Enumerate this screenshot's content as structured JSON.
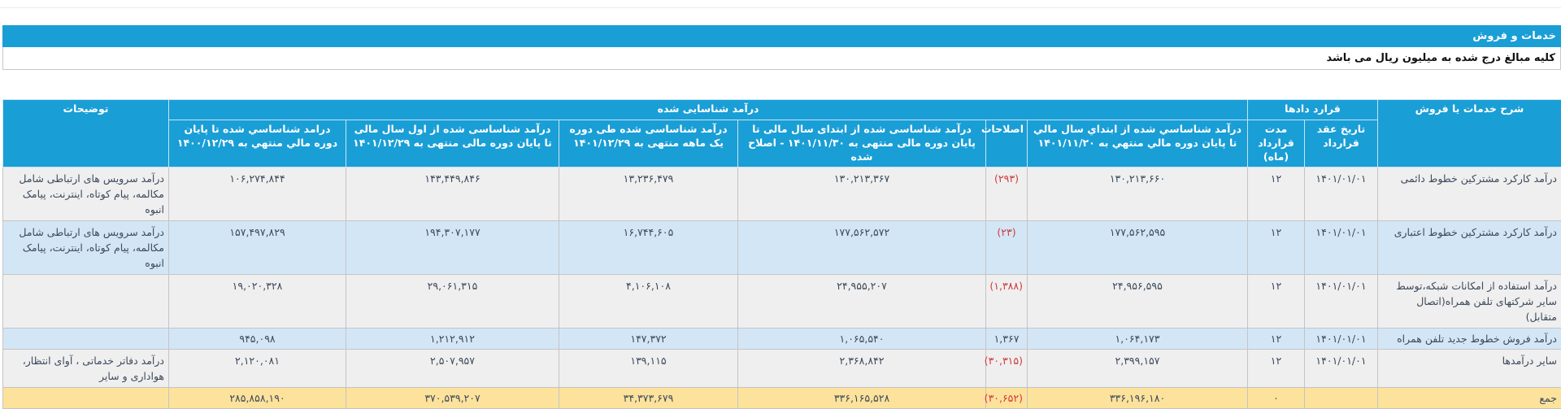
{
  "section": {
    "title": "خدمات و فروش",
    "note": "کلیه مبالغ درج شده به میلیون ریال می باشد"
  },
  "colors": {
    "header": "#1a9ed6",
    "row_odd": "#efefef",
    "row_even": "#d3e6f6",
    "total_row": "#fde29c",
    "negative": "#d23a3a"
  },
  "table": {
    "headers": {
      "description": "شرح خدمات یا فروش",
      "contracts": "قرارد دادها",
      "recognized": "درآمد شناسایی شده",
      "notes": "توضیحات",
      "contract_date": "تاریخ عقد قرارداد",
      "duration": "مدت قرارداد (ماه)",
      "ytd_1401_11_20": "درآمد شناساسي شده از ابتداي سال مالي تا پايان دوره مالي منتهي به ۱۴۰۱/۱۱/۲۰",
      "adjustments": "اصلاحات",
      "ytd_adjusted": "درآمد شناساسی شده از ابتدای سال مالی تا پایان دوره مالی منتهی به ۱۴۰۱/۱۱/۳۰ - اصلاح شده",
      "one_month": "درآمد شناساسی شده طی دوره یک ماهه منتهی به ۱۴۰۱/۱۲/۲۹",
      "ytd_1401_12_29": "درآمد شناساسی شده از اول سال مالی تا پایان دوره مالی منتهی به ۱۴۰۱/۱۲/۲۹",
      "to_1400_12_29": "درامد شناساسي شده تا پايان دوره مالي منتهي به ۱۴۰۰/۱۲/۲۹"
    },
    "rows": [
      {
        "desc": "درآمد کارکرد مشترکین خطوط دائمی",
        "date": "۱۴۰۱/۰۱/۰۱",
        "duration": "۱۲",
        "c1": "۱۳۰,۲۱۳,۶۶۰",
        "adj": "(۲۹۳)",
        "c2": "۱۳۰,۲۱۳,۳۶۷",
        "c3": "۱۳,۲۳۶,۴۷۹",
        "c4": "۱۴۳,۴۴۹,۸۴۶",
        "c5": "۱۰۶,۲۷۴,۸۴۴",
        "notes": "درآمد سرویس های ارتباطی شامل مکالمه، پیام کوتاه، اینترنت، پیامک انبوه"
      },
      {
        "desc": "درآمد کارکرد مشترکین خطوط اعتباری",
        "date": "۱۴۰۱/۰۱/۰۱",
        "duration": "۱۲",
        "c1": "۱۷۷,۵۶۲,۵۹۵",
        "adj": "(۲۳)",
        "c2": "۱۷۷,۵۶۲,۵۷۲",
        "c3": "۱۶,۷۴۴,۶۰۵",
        "c4": "۱۹۴,۳۰۷,۱۷۷",
        "c5": "۱۵۷,۴۹۷,۸۲۹",
        "notes": "درآمد سرویس های ارتباطی شامل مکالمه، پیام کوتاه، اینترنت، پیامک انبوه"
      },
      {
        "desc": "درآمد استفاده از امکانات شبکه،توسط سایر شرکتهای تلفن همراه(اتصال متقابل)",
        "date": "۱۴۰۱/۰۱/۰۱",
        "duration": "۱۲",
        "c1": "۲۴,۹۵۶,۵۹۵",
        "adj": "(۱,۳۸۸)",
        "c2": "۲۴,۹۵۵,۲۰۷",
        "c3": "۴,۱۰۶,۱۰۸",
        "c4": "۲۹,۰۶۱,۳۱۵",
        "c5": "۱۹,۰۲۰,۳۲۸",
        "notes": ""
      },
      {
        "desc": "درآمد فروش خطوط جدید تلفن همراه",
        "date": "۱۴۰۱/۰۱/۰۱",
        "duration": "۱۲",
        "c1": "۱,۰۶۴,۱۷۳",
        "adj": "۱,۳۶۷",
        "c2": "۱,۰۶۵,۵۴۰",
        "c3": "۱۴۷,۳۷۲",
        "c4": "۱,۲۱۲,۹۱۲",
        "c5": "۹۴۵,۰۹۸",
        "notes": ""
      },
      {
        "desc": "سایر درآمدها",
        "date": "۱۴۰۱/۰۱/۰۱",
        "duration": "۱۲",
        "c1": "۲,۳۹۹,۱۵۷",
        "adj": "(۳۰,۳۱۵)",
        "c2": "۲,۳۶۸,۸۴۲",
        "c3": "۱۳۹,۱۱۵",
        "c4": "۲,۵۰۷,۹۵۷",
        "c5": "۲,۱۲۰,۰۸۱",
        "notes": "درآمد دفاتر خدماتی ، آوای انتظار، هواداری و سایر"
      }
    ],
    "total": {
      "desc": "جمع",
      "date": "",
      "duration": "۰",
      "c1": "۳۳۶,۱۹۶,۱۸۰",
      "adj": "(۳۰,۶۵۲)",
      "c2": "۳۳۶,۱۶۵,۵۲۸",
      "c3": "۳۴,۳۷۳,۶۷۹",
      "c4": "۳۷۰,۵۳۹,۲۰۷",
      "c5": "۲۸۵,۸۵۸,۱۹۰",
      "notes": ""
    }
  }
}
